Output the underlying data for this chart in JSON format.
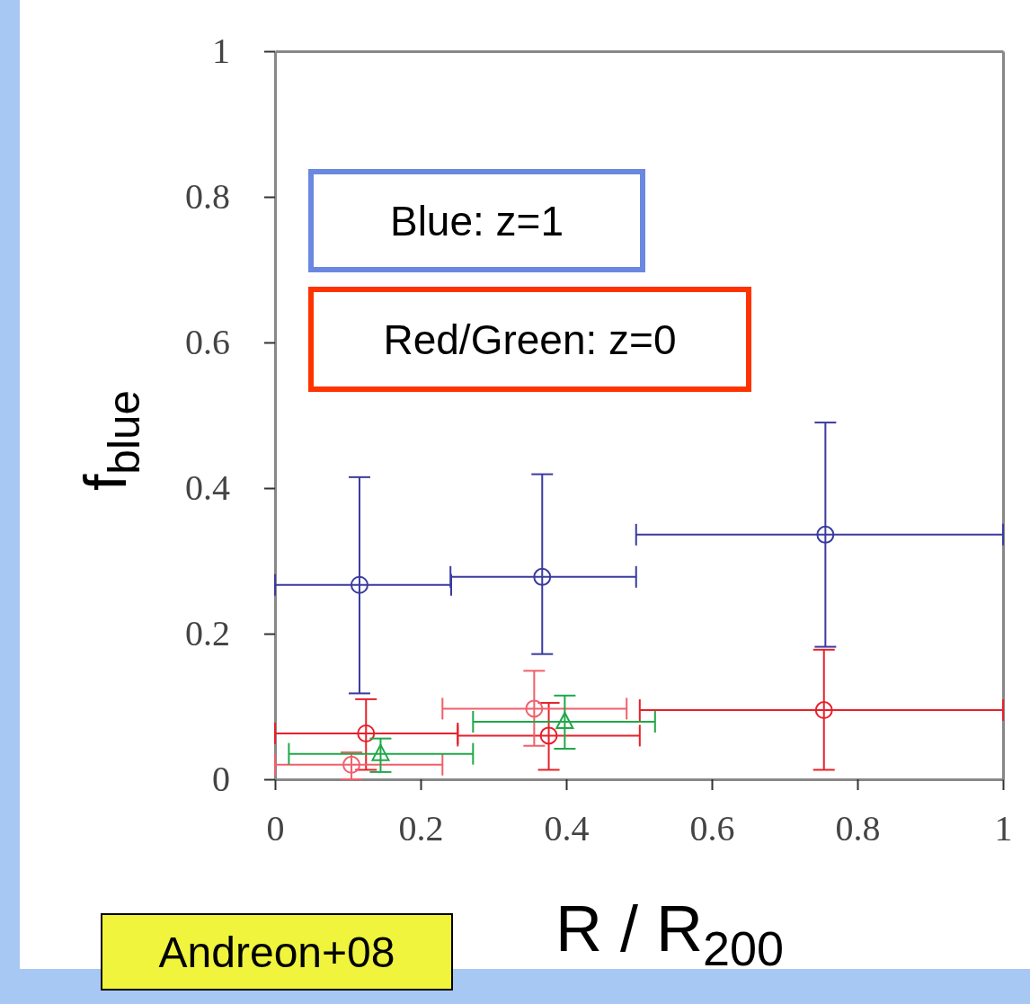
{
  "chart_data": {
    "type": "scatter",
    "xlabel": "R / R$_{200}$",
    "ylabel": "f$_{blue}$",
    "xlim": [
      0,
      1
    ],
    "ylim": [
      0,
      1
    ],
    "xticks": [
      0,
      0.2,
      0.4,
      0.6,
      0.8,
      1
    ],
    "yticks": [
      0,
      0.2,
      0.4,
      0.6,
      0.8,
      1
    ],
    "series": [
      {
        "color": "#3a3aa0",
        "marker": "circle",
        "x": [
          0.116,
          0.367,
          0.756
        ],
        "values": [
          0.267,
          0.278,
          0.336
        ],
        "errors": [
          [
            0.118,
            0.415
          ],
          [
            0.172,
            0.419
          ],
          [
            0.182,
            0.49
          ]
        ],
        "xerrors": [
          [
            0,
            0.242
          ],
          [
            0.241,
            0.496
          ],
          [
            0.496,
            1
          ]
        ]
      },
      {
        "color": "#e8202a",
        "marker": "circle",
        "x": [
          0.125,
          0.376,
          0.754
        ],
        "values": [
          0.063,
          0.06,
          0.095
        ],
        "errors": [
          [
            0.013,
            0.11
          ],
          [
            0.013,
            0.105
          ],
          [
            0.013,
            0.178
          ]
        ],
        "xerrors": [
          [
            0,
            0.251
          ],
          [
            0.251,
            0.501
          ],
          [
            0.501,
            1
          ]
        ]
      },
      {
        "color": "#f0606a",
        "marker": "circle",
        "x": [
          0.105,
          0.356
        ],
        "values": [
          0.02,
          0.097
        ],
        "errors": [
          [
            0,
            0.037
          ],
          [
            0.046,
            0.149
          ]
        ],
        "xerrors": [
          [
            0,
            0.23
          ],
          [
            0.23,
            0.483
          ]
        ]
      },
      {
        "color": "#20a848",
        "marker": "triangle",
        "x": [
          0.145,
          0.398
        ],
        "values": [
          0.035,
          0.079
        ],
        "errors": [
          [
            0.01,
            0.056
          ],
          [
            0.042,
            0.115
          ]
        ],
        "xerrors": [
          [
            0.019,
            0.272
          ],
          [
            0.272,
            0.522
          ]
        ]
      }
    ],
    "annotations": [
      "Blue: z=1",
      "Red/Green: z=0",
      "Andreon+08"
    ]
  }
}
